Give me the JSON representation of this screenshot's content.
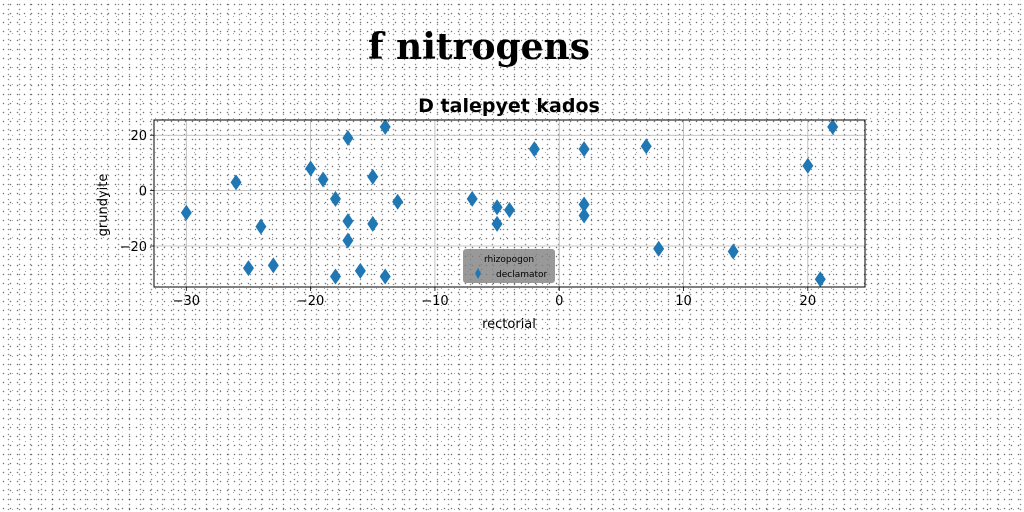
{
  "figure": {
    "suptitle": "f nitrogens"
  },
  "chart_data": {
    "type": "scatter",
    "title": "D talepyet kados",
    "xlabel": "rectorial",
    "ylabel": "grundyite",
    "xlim": [
      -32.6,
      24.6
    ],
    "ylim": [
      -34.8,
      25.5
    ],
    "xticks": [
      -30,
      -20,
      -10,
      0,
      10,
      20
    ],
    "yticks": [
      -20,
      0,
      20
    ],
    "grid": true,
    "legend_position": "bottom-center",
    "legend": {
      "title": "rhizopogon",
      "entries": [
        "declamator"
      ]
    },
    "marker": "thin-diamond",
    "color": "#1f77b4",
    "series": [
      {
        "name": "declamator",
        "points": [
          [
            -30,
            -8
          ],
          [
            -26,
            3
          ],
          [
            -25,
            -28
          ],
          [
            -24,
            -13
          ],
          [
            -23,
            -27
          ],
          [
            -20,
            8
          ],
          [
            -19,
            4
          ],
          [
            -18,
            -3
          ],
          [
            -18,
            -31
          ],
          [
            -17,
            19
          ],
          [
            -17,
            -11
          ],
          [
            -17,
            -18
          ],
          [
            -16,
            -29
          ],
          [
            -15,
            5
          ],
          [
            -15,
            -12
          ],
          [
            -14,
            23
          ],
          [
            -14,
            -31
          ],
          [
            -13,
            -4
          ],
          [
            -7,
            -3
          ],
          [
            -5,
            -6
          ],
          [
            -5,
            -12
          ],
          [
            -4,
            -7
          ],
          [
            -2,
            15
          ],
          [
            2,
            15
          ],
          [
            2,
            -5
          ],
          [
            2,
            -9
          ],
          [
            7,
            16
          ],
          [
            8,
            -21
          ],
          [
            14,
            -22
          ],
          [
            20,
            9
          ],
          [
            21,
            -32
          ],
          [
            22,
            23
          ]
        ]
      }
    ]
  }
}
